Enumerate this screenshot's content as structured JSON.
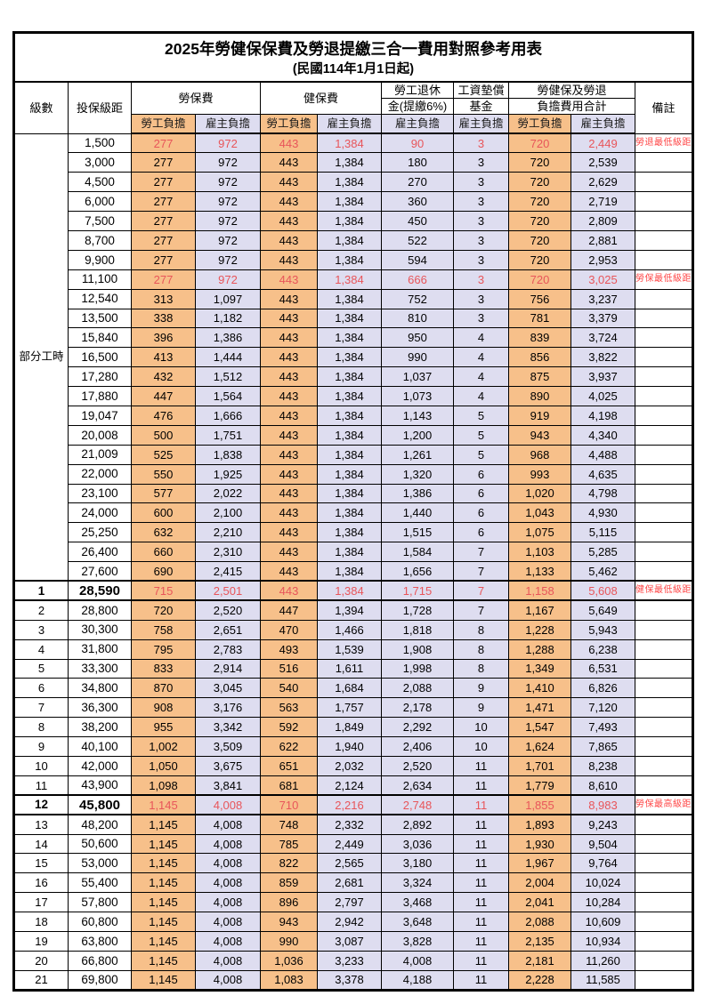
{
  "title": "2025年勞健保保費及勞退提繳三合一費用對照參考用表",
  "subtitle": "(民國114年1月1日起)",
  "header": {
    "level": "級數",
    "bracket": "投保級距",
    "labor_ins": "勞保費",
    "health_ins": "健保費",
    "pension_line1": "勞工退休",
    "pension_line2": "金(提繳6%)",
    "wage_fund_line1": "工資墊償",
    "wage_fund_line2": "基金",
    "total_line1": "勞健保及勞退",
    "total_line2": "負擔費用合計",
    "remark": "備註",
    "employee": "勞工負擔",
    "employer": "雇主負擔"
  },
  "part_time_label": "部分工時",
  "part_time_rowspan": 23,
  "colors": {
    "employee_bg": "#F7C08A",
    "employer_bg": "#DEDDF0",
    "data_red": "#E8555A",
    "remark_red": "#FF4747",
    "border": "#000000"
  },
  "rows": [
    {
      "level": "",
      "bracket": "1,500",
      "labor_emp": "277",
      "labor_er": "972",
      "health_emp": "443",
      "health_er": "1,384",
      "pension": "90",
      "fund": "3",
      "total_emp": "720",
      "total_er": "2,449",
      "remark": "勞退最低級距",
      "red": true
    },
    {
      "level": "",
      "bracket": "3,000",
      "labor_emp": "277",
      "labor_er": "972",
      "health_emp": "443",
      "health_er": "1,384",
      "pension": "180",
      "fund": "3",
      "total_emp": "720",
      "total_er": "2,539",
      "remark": ""
    },
    {
      "level": "",
      "bracket": "4,500",
      "labor_emp": "277",
      "labor_er": "972",
      "health_emp": "443",
      "health_er": "1,384",
      "pension": "270",
      "fund": "3",
      "total_emp": "720",
      "total_er": "2,629",
      "remark": ""
    },
    {
      "level": "",
      "bracket": "6,000",
      "labor_emp": "277",
      "labor_er": "972",
      "health_emp": "443",
      "health_er": "1,384",
      "pension": "360",
      "fund": "3",
      "total_emp": "720",
      "total_er": "2,719",
      "remark": ""
    },
    {
      "level": "",
      "bracket": "7,500",
      "labor_emp": "277",
      "labor_er": "972",
      "health_emp": "443",
      "health_er": "1,384",
      "pension": "450",
      "fund": "3",
      "total_emp": "720",
      "total_er": "2,809",
      "remark": ""
    },
    {
      "level": "",
      "bracket": "8,700",
      "labor_emp": "277",
      "labor_er": "972",
      "health_emp": "443",
      "health_er": "1,384",
      "pension": "522",
      "fund": "3",
      "total_emp": "720",
      "total_er": "2,881",
      "remark": ""
    },
    {
      "level": "",
      "bracket": "9,900",
      "labor_emp": "277",
      "labor_er": "972",
      "health_emp": "443",
      "health_er": "1,384",
      "pension": "594",
      "fund": "3",
      "total_emp": "720",
      "total_er": "2,953",
      "remark": ""
    },
    {
      "level": "",
      "bracket": "11,100",
      "labor_emp": "277",
      "labor_er": "972",
      "health_emp": "443",
      "health_er": "1,384",
      "pension": "666",
      "fund": "3",
      "total_emp": "720",
      "total_er": "3,025",
      "remark": "勞保最低級距",
      "red": true
    },
    {
      "level": "",
      "bracket": "12,540",
      "labor_emp": "313",
      "labor_er": "1,097",
      "health_emp": "443",
      "health_er": "1,384",
      "pension": "752",
      "fund": "3",
      "total_emp": "756",
      "total_er": "3,237",
      "remark": ""
    },
    {
      "level": "",
      "bracket": "13,500",
      "labor_emp": "338",
      "labor_er": "1,182",
      "health_emp": "443",
      "health_er": "1,384",
      "pension": "810",
      "fund": "3",
      "total_emp": "781",
      "total_er": "3,379",
      "remark": ""
    },
    {
      "level": "",
      "bracket": "15,840",
      "labor_emp": "396",
      "labor_er": "1,386",
      "health_emp": "443",
      "health_er": "1,384",
      "pension": "950",
      "fund": "4",
      "total_emp": "839",
      "total_er": "3,724",
      "remark": ""
    },
    {
      "level": "",
      "bracket": "16,500",
      "labor_emp": "413",
      "labor_er": "1,444",
      "health_emp": "443",
      "health_er": "1,384",
      "pension": "990",
      "fund": "4",
      "total_emp": "856",
      "total_er": "3,822",
      "remark": ""
    },
    {
      "level": "",
      "bracket": "17,280",
      "labor_emp": "432",
      "labor_er": "1,512",
      "health_emp": "443",
      "health_er": "1,384",
      "pension": "1,037",
      "fund": "4",
      "total_emp": "875",
      "total_er": "3,937",
      "remark": ""
    },
    {
      "level": "",
      "bracket": "17,880",
      "labor_emp": "447",
      "labor_er": "1,564",
      "health_emp": "443",
      "health_er": "1,384",
      "pension": "1,073",
      "fund": "4",
      "total_emp": "890",
      "total_er": "4,025",
      "remark": ""
    },
    {
      "level": "",
      "bracket": "19,047",
      "labor_emp": "476",
      "labor_er": "1,666",
      "health_emp": "443",
      "health_er": "1,384",
      "pension": "1,143",
      "fund": "5",
      "total_emp": "919",
      "total_er": "4,198",
      "remark": ""
    },
    {
      "level": "",
      "bracket": "20,008",
      "labor_emp": "500",
      "labor_er": "1,751",
      "health_emp": "443",
      "health_er": "1,384",
      "pension": "1,200",
      "fund": "5",
      "total_emp": "943",
      "total_er": "4,340",
      "remark": ""
    },
    {
      "level": "",
      "bracket": "21,009",
      "labor_emp": "525",
      "labor_er": "1,838",
      "health_emp": "443",
      "health_er": "1,384",
      "pension": "1,261",
      "fund": "5",
      "total_emp": "968",
      "total_er": "4,488",
      "remark": ""
    },
    {
      "level": "",
      "bracket": "22,000",
      "labor_emp": "550",
      "labor_er": "1,925",
      "health_emp": "443",
      "health_er": "1,384",
      "pension": "1,320",
      "fund": "6",
      "total_emp": "993",
      "total_er": "4,635",
      "remark": ""
    },
    {
      "level": "",
      "bracket": "23,100",
      "labor_emp": "577",
      "labor_er": "2,022",
      "health_emp": "443",
      "health_er": "1,384",
      "pension": "1,386",
      "fund": "6",
      "total_emp": "1,020",
      "total_er": "4,798",
      "remark": ""
    },
    {
      "level": "",
      "bracket": "24,000",
      "labor_emp": "600",
      "labor_er": "2,100",
      "health_emp": "443",
      "health_er": "1,384",
      "pension": "1,440",
      "fund": "6",
      "total_emp": "1,043",
      "total_er": "4,930",
      "remark": ""
    },
    {
      "level": "",
      "bracket": "25,250",
      "labor_emp": "632",
      "labor_er": "2,210",
      "health_emp": "443",
      "health_er": "1,384",
      "pension": "1,515",
      "fund": "6",
      "total_emp": "1,075",
      "total_er": "5,115",
      "remark": ""
    },
    {
      "level": "",
      "bracket": "26,400",
      "labor_emp": "660",
      "labor_er": "2,310",
      "health_emp": "443",
      "health_er": "1,384",
      "pension": "1,584",
      "fund": "7",
      "total_emp": "1,103",
      "total_er": "5,285",
      "remark": ""
    },
    {
      "level": "",
      "bracket": "27,600",
      "labor_emp": "690",
      "labor_er": "2,415",
      "health_emp": "443",
      "health_er": "1,384",
      "pension": "1,656",
      "fund": "7",
      "total_emp": "1,133",
      "total_er": "5,462",
      "remark": ""
    },
    {
      "level": "1",
      "bracket": "28,590",
      "labor_emp": "715",
      "labor_er": "2,501",
      "health_emp": "443",
      "health_er": "1,384",
      "pension": "1,715",
      "fund": "7",
      "total_emp": "1,158",
      "total_er": "5,608",
      "remark": "健保最低級距",
      "red": true,
      "thick": true,
      "bold": true
    },
    {
      "level": "2",
      "bracket": "28,800",
      "labor_emp": "720",
      "labor_er": "2,520",
      "health_emp": "447",
      "health_er": "1,394",
      "pension": "1,728",
      "fund": "7",
      "total_emp": "1,167",
      "total_er": "5,649",
      "remark": ""
    },
    {
      "level": "3",
      "bracket": "30,300",
      "labor_emp": "758",
      "labor_er": "2,651",
      "health_emp": "470",
      "health_er": "1,466",
      "pension": "1,818",
      "fund": "8",
      "total_emp": "1,228",
      "total_er": "5,943",
      "remark": ""
    },
    {
      "level": "4",
      "bracket": "31,800",
      "labor_emp": "795",
      "labor_er": "2,783",
      "health_emp": "493",
      "health_er": "1,539",
      "pension": "1,908",
      "fund": "8",
      "total_emp": "1,288",
      "total_er": "6,238",
      "remark": ""
    },
    {
      "level": "5",
      "bracket": "33,300",
      "labor_emp": "833",
      "labor_er": "2,914",
      "health_emp": "516",
      "health_er": "1,611",
      "pension": "1,998",
      "fund": "8",
      "total_emp": "1,349",
      "total_er": "6,531",
      "remark": ""
    },
    {
      "level": "6",
      "bracket": "34,800",
      "labor_emp": "870",
      "labor_er": "3,045",
      "health_emp": "540",
      "health_er": "1,684",
      "pension": "2,088",
      "fund": "9",
      "total_emp": "1,410",
      "total_er": "6,826",
      "remark": ""
    },
    {
      "level": "7",
      "bracket": "36,300",
      "labor_emp": "908",
      "labor_er": "3,176",
      "health_emp": "563",
      "health_er": "1,757",
      "pension": "2,178",
      "fund": "9",
      "total_emp": "1,471",
      "total_er": "7,120",
      "remark": ""
    },
    {
      "level": "8",
      "bracket": "38,200",
      "labor_emp": "955",
      "labor_er": "3,342",
      "health_emp": "592",
      "health_er": "1,849",
      "pension": "2,292",
      "fund": "10",
      "total_emp": "1,547",
      "total_er": "7,493",
      "remark": ""
    },
    {
      "level": "9",
      "bracket": "40,100",
      "labor_emp": "1,002",
      "labor_er": "3,509",
      "health_emp": "622",
      "health_er": "1,940",
      "pension": "2,406",
      "fund": "10",
      "total_emp": "1,624",
      "total_er": "7,865",
      "remark": ""
    },
    {
      "level": "10",
      "bracket": "42,000",
      "labor_emp": "1,050",
      "labor_er": "3,675",
      "health_emp": "651",
      "health_er": "2,032",
      "pension": "2,520",
      "fund": "11",
      "total_emp": "1,701",
      "total_er": "8,238",
      "remark": ""
    },
    {
      "level": "11",
      "bracket": "43,900",
      "labor_emp": "1,098",
      "labor_er": "3,841",
      "health_emp": "681",
      "health_er": "2,124",
      "pension": "2,634",
      "fund": "11",
      "total_emp": "1,779",
      "total_er": "8,610",
      "remark": ""
    },
    {
      "level": "12",
      "bracket": "45,800",
      "labor_emp": "1,145",
      "labor_er": "4,008",
      "health_emp": "710",
      "health_er": "2,216",
      "pension": "2,748",
      "fund": "11",
      "total_emp": "1,855",
      "total_er": "8,983",
      "remark": "勞保最高級距",
      "red": true,
      "thick": true,
      "bold": true
    },
    {
      "level": "13",
      "bracket": "48,200",
      "labor_emp": "1,145",
      "labor_er": "4,008",
      "health_emp": "748",
      "health_er": "2,332",
      "pension": "2,892",
      "fund": "11",
      "total_emp": "1,893",
      "total_er": "9,243",
      "remark": ""
    },
    {
      "level": "14",
      "bracket": "50,600",
      "labor_emp": "1,145",
      "labor_er": "4,008",
      "health_emp": "785",
      "health_er": "2,449",
      "pension": "3,036",
      "fund": "11",
      "total_emp": "1,930",
      "total_er": "9,504",
      "remark": ""
    },
    {
      "level": "15",
      "bracket": "53,000",
      "labor_emp": "1,145",
      "labor_er": "4,008",
      "health_emp": "822",
      "health_er": "2,565",
      "pension": "3,180",
      "fund": "11",
      "total_emp": "1,967",
      "total_er": "9,764",
      "remark": ""
    },
    {
      "level": "16",
      "bracket": "55,400",
      "labor_emp": "1,145",
      "labor_er": "4,008",
      "health_emp": "859",
      "health_er": "2,681",
      "pension": "3,324",
      "fund": "11",
      "total_emp": "2,004",
      "total_er": "10,024",
      "remark": ""
    },
    {
      "level": "17",
      "bracket": "57,800",
      "labor_emp": "1,145",
      "labor_er": "4,008",
      "health_emp": "896",
      "health_er": "2,797",
      "pension": "3,468",
      "fund": "11",
      "total_emp": "2,041",
      "total_er": "10,284",
      "remark": ""
    },
    {
      "level": "18",
      "bracket": "60,800",
      "labor_emp": "1,145",
      "labor_er": "4,008",
      "health_emp": "943",
      "health_er": "2,942",
      "pension": "3,648",
      "fund": "11",
      "total_emp": "2,088",
      "total_er": "10,609",
      "remark": ""
    },
    {
      "level": "19",
      "bracket": "63,800",
      "labor_emp": "1,145",
      "labor_er": "4,008",
      "health_emp": "990",
      "health_er": "3,087",
      "pension": "3,828",
      "fund": "11",
      "total_emp": "2,135",
      "total_er": "10,934",
      "remark": ""
    },
    {
      "level": "20",
      "bracket": "66,800",
      "labor_emp": "1,145",
      "labor_er": "4,008",
      "health_emp": "1,036",
      "health_er": "3,233",
      "pension": "4,008",
      "fund": "11",
      "total_emp": "2,181",
      "total_er": "11,260",
      "remark": ""
    },
    {
      "level": "21",
      "bracket": "69,800",
      "labor_emp": "1,145",
      "labor_er": "4,008",
      "health_emp": "1,083",
      "health_er": "3,378",
      "pension": "4,188",
      "fund": "11",
      "total_emp": "2,228",
      "total_er": "11,585",
      "remark": ""
    }
  ]
}
